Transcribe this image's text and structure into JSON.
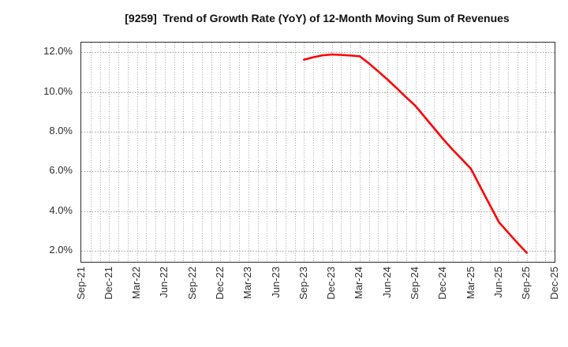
{
  "chart_data": {
    "type": "line",
    "title": "[9259]  Trend of Growth Rate (YoY) of 12-Month Moving Sum of Revenues",
    "x_axis": {
      "start_month": "Sep-21",
      "end_month": "Dec-25",
      "tick_labels": [
        "Sep-21",
        "Dec-21",
        "Mar-22",
        "Jun-22",
        "Sep-22",
        "Dec-22",
        "Mar-23",
        "Jun-23",
        "Sep-23",
        "Dec-23",
        "Mar-24",
        "Jun-24",
        "Sep-24",
        "Dec-24",
        "Mar-25",
        "Jun-25",
        "Sep-25",
        "Dec-25"
      ],
      "months_per_tick": 3,
      "minor_grid_every_month": true
    },
    "y_axis": {
      "tick_values": [
        12,
        10,
        8,
        6,
        4,
        2
      ],
      "tick_labels": [
        "12.0%",
        "10.0%",
        "8.0%",
        "6.0%",
        "4.0%",
        "2.0%"
      ],
      "min": 1.45,
      "max": 12.48,
      "unit": "%"
    },
    "series": [
      {
        "name": "Growth Rate (YoY) of 12-Month Moving Sum of Revenues",
        "color": "#ff0000",
        "points": [
          {
            "month": "Sep-23",
            "value": 11.62
          },
          {
            "month": "Oct-23",
            "value": 11.74
          },
          {
            "month": "Nov-23",
            "value": 11.84
          },
          {
            "month": "Dec-23",
            "value": 11.88
          },
          {
            "month": "Jan-24",
            "value": 11.86
          },
          {
            "month": "Feb-24",
            "value": 11.83
          },
          {
            "month": "Mar-24",
            "value": 11.79
          },
          {
            "month": "Apr-24",
            "value": 11.43
          },
          {
            "month": "May-24",
            "value": 11.03
          },
          {
            "month": "Jun-24",
            "value": 10.62
          },
          {
            "month": "Jul-24",
            "value": 10.18
          },
          {
            "month": "Aug-24",
            "value": 9.73
          },
          {
            "month": "Sep-24",
            "value": 9.3
          },
          {
            "month": "Oct-24",
            "value": 8.74
          },
          {
            "month": "Nov-24",
            "value": 8.18
          },
          {
            "month": "Dec-24",
            "value": 7.62
          },
          {
            "month": "Jan-25",
            "value": 7.1
          },
          {
            "month": "Feb-25",
            "value": 6.62
          },
          {
            "month": "Mar-25",
            "value": 6.12
          },
          {
            "month": "Apr-25",
            "value": 5.22
          },
          {
            "month": "May-25",
            "value": 4.33
          },
          {
            "month": "Jun-25",
            "value": 3.45
          },
          {
            "month": "Jul-25",
            "value": 2.92
          },
          {
            "month": "Aug-25",
            "value": 2.4
          },
          {
            "month": "Sep-25",
            "value": 1.9
          }
        ]
      }
    ],
    "legend": null,
    "grid": {
      "style": "dotted",
      "color": "#a3a3a3"
    },
    "colors": {
      "line": "#ff0000",
      "spine": "#2b2b2b",
      "title_text": "#111111",
      "tick_text": "#2e2e2e",
      "background": "#ffffff"
    }
  }
}
